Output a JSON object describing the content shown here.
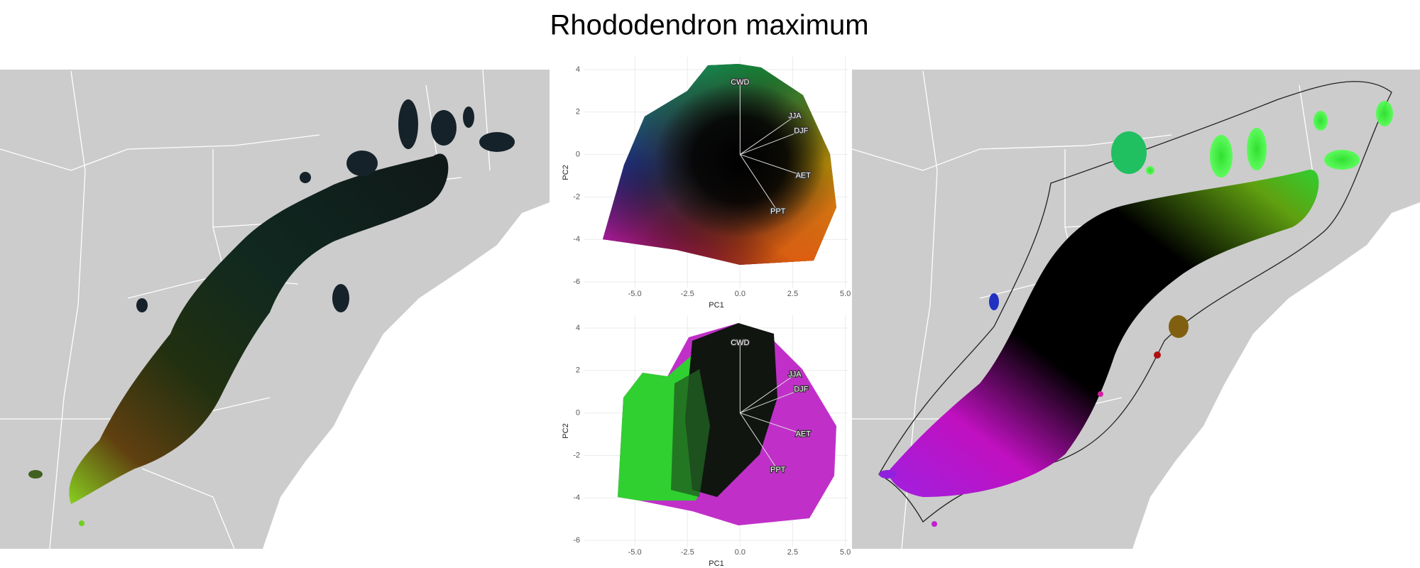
{
  "title": "Rhododendron maximum",
  "chart_data": [
    {
      "type": "scatter",
      "xlabel": "PC1",
      "ylabel": "PC2",
      "xlim": [
        -7.4,
        5.15
      ],
      "ylim": [
        -6.3,
        4.6
      ],
      "xticks": [
        {
          "value": -5,
          "label": "-5.0"
        },
        {
          "value": -2.5,
          "label": "-2.5"
        },
        {
          "value": 0,
          "label": "0.0"
        },
        {
          "value": 2.5,
          "label": "2.5"
        },
        {
          "value": 5,
          "label": "5.0"
        }
      ],
      "yticks": [
        -6,
        -4,
        -2,
        0,
        2,
        4
      ],
      "grid": true,
      "arrow_color": "#dddddd",
      "arrows": [
        {
          "label": "CWD",
          "x": 0,
          "y": 3.4
        },
        {
          "label": "JJA",
          "x": 2.6,
          "y": 1.8
        },
        {
          "label": "DJF",
          "x": 2.9,
          "y": 1.1
        },
        {
          "label": "AET",
          "x": 3.0,
          "y": -1.0
        },
        {
          "label": "PPT",
          "x": 1.8,
          "y": -2.7
        }
      ]
    },
    {
      "type": "scatter",
      "xlabel": "PC1",
      "ylabel": "PC2",
      "xlim": [
        -7.4,
        5.15
      ],
      "ylim": [
        -6.3,
        4.6
      ],
      "xticks": [
        {
          "value": -5,
          "label": "-5.0"
        },
        {
          "value": -2.5,
          "label": "-2.5"
        },
        {
          "value": 0,
          "label": "0.0"
        },
        {
          "value": 2.5,
          "label": "2.5"
        },
        {
          "value": 5,
          "label": "5.0"
        }
      ],
      "yticks": [
        -6,
        -4,
        -2,
        0,
        2,
        4
      ],
      "grid": true,
      "arrow_color": "#dddddd",
      "arrows": [
        {
          "label": "CWD",
          "x": 0,
          "y": 3.3
        },
        {
          "label": "JJA",
          "x": 2.6,
          "y": 1.8
        },
        {
          "label": "DJF",
          "x": 2.9,
          "y": 1.1
        },
        {
          "label": "AET",
          "x": 3.0,
          "y": -1.0
        },
        {
          "label": "PPT",
          "x": 1.8,
          "y": -2.7
        }
      ]
    }
  ]
}
